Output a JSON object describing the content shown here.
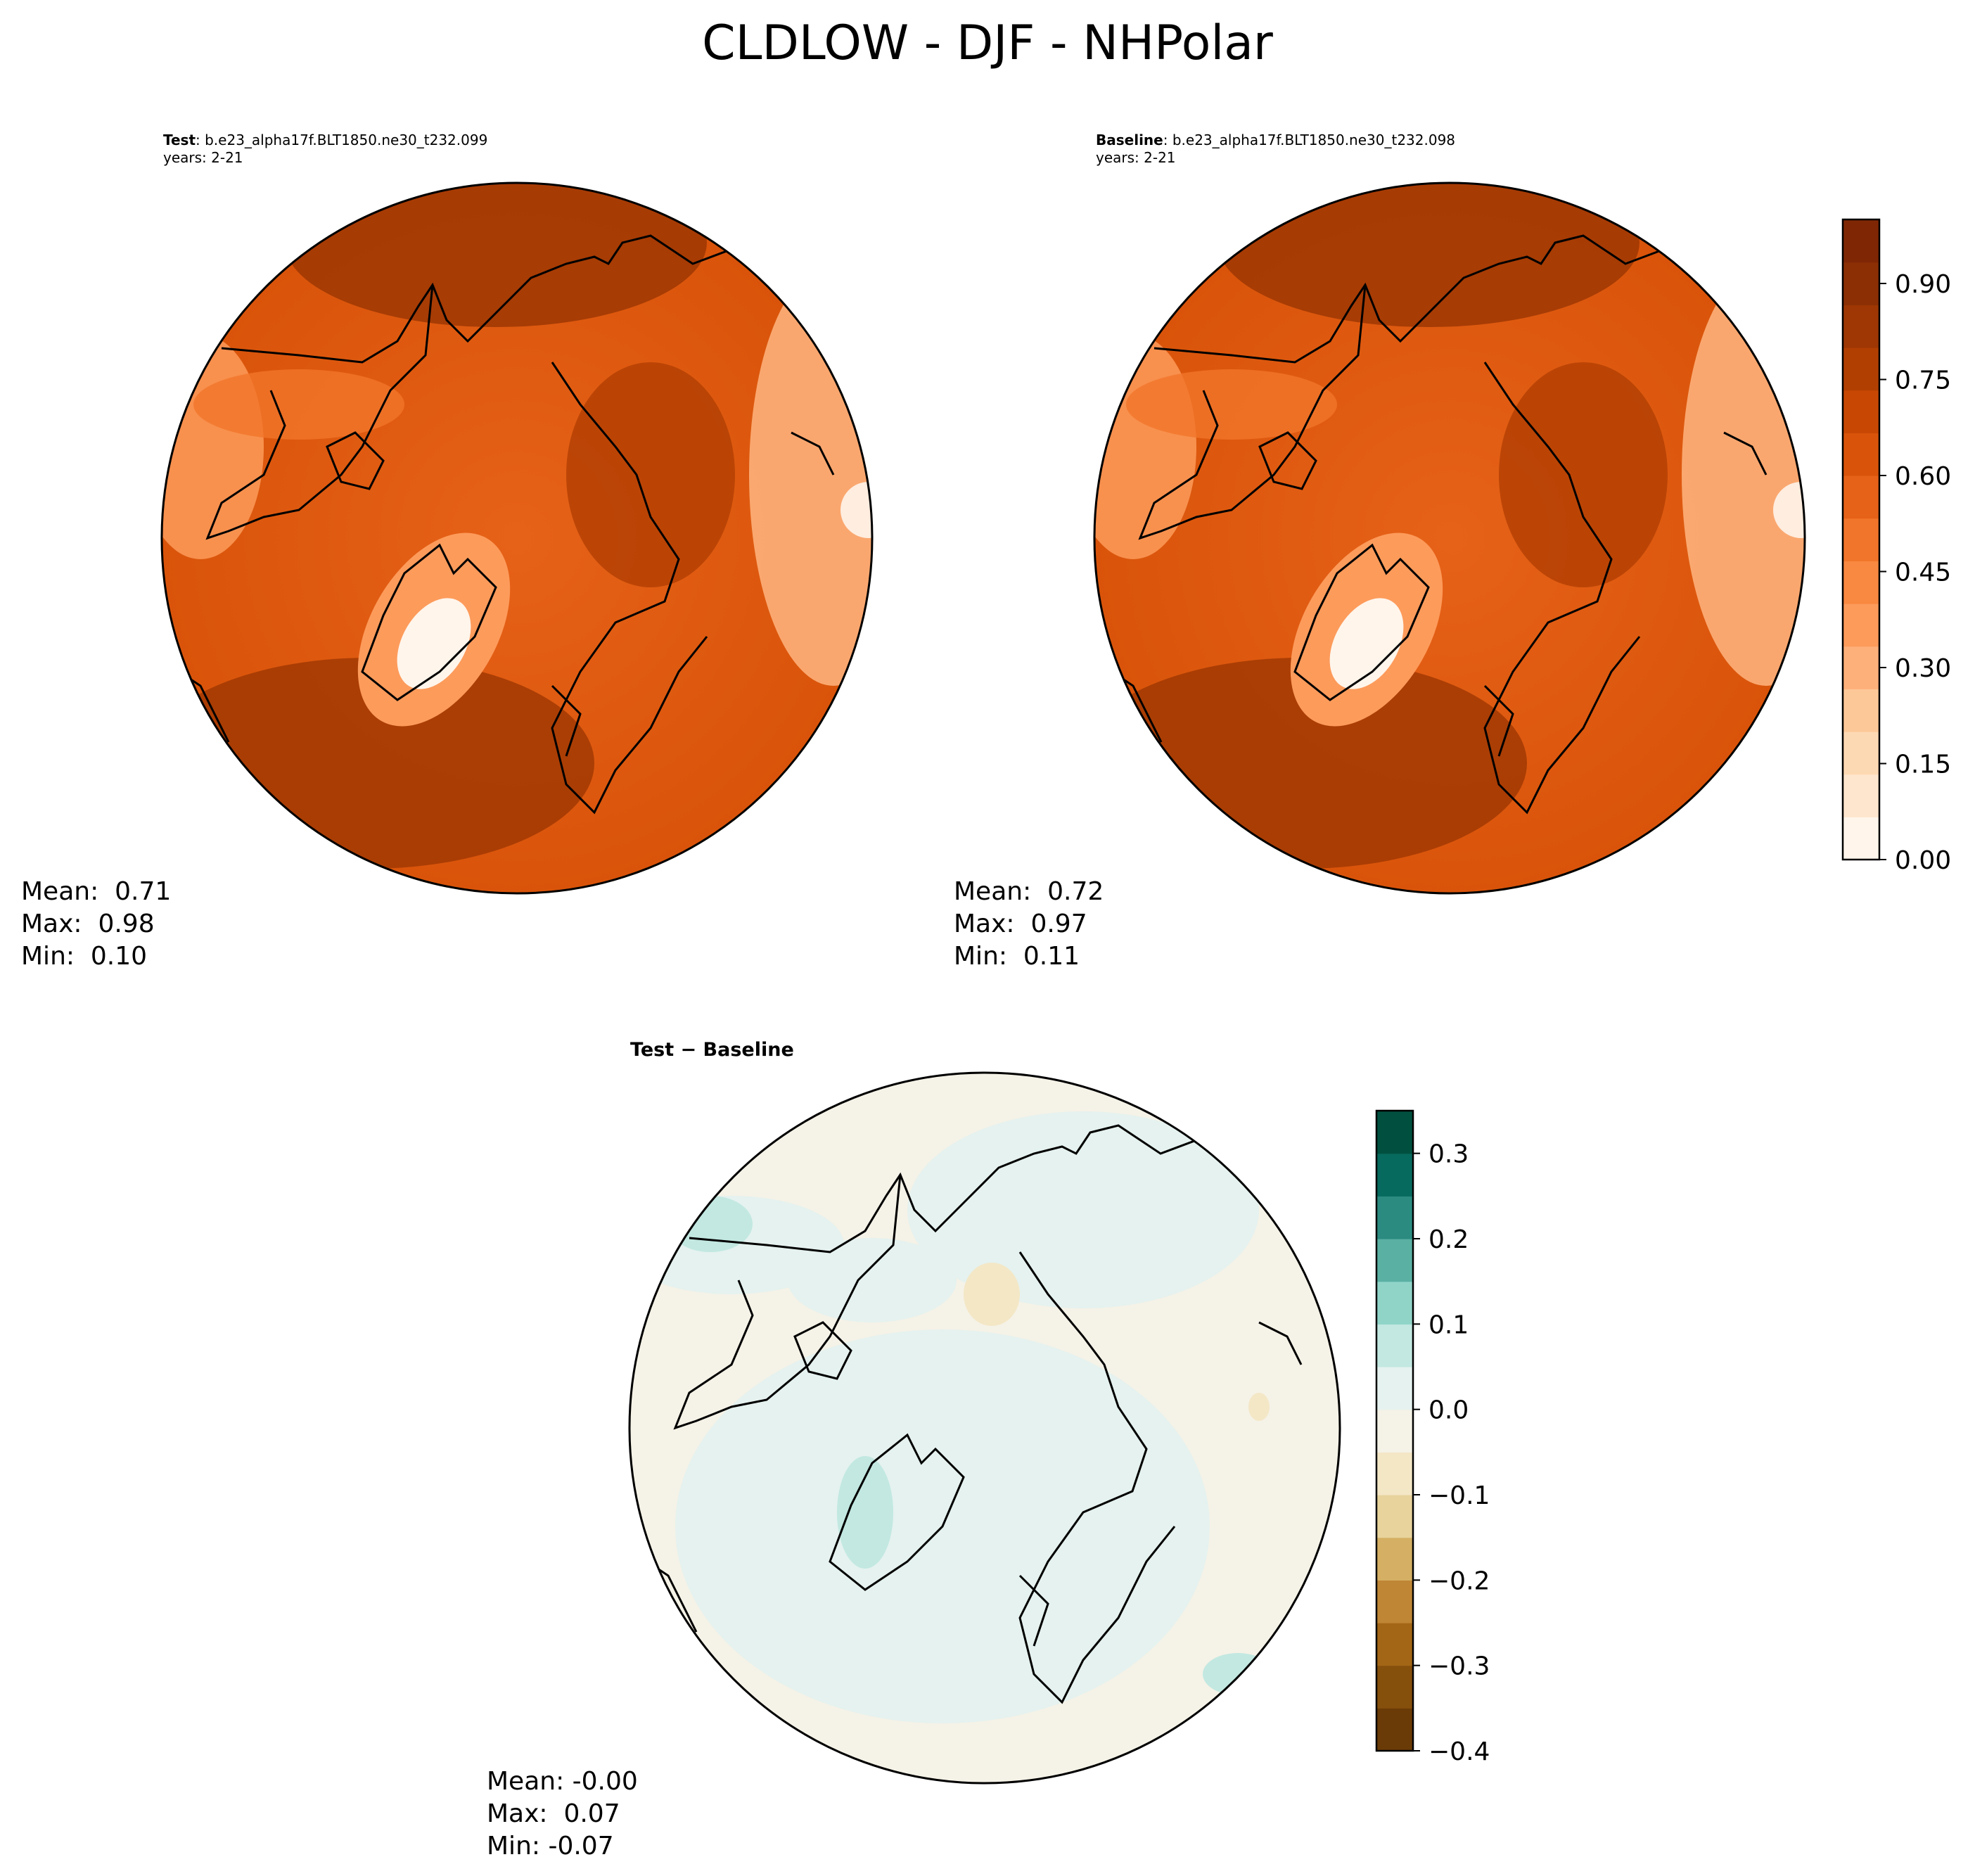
{
  "title": "CLDLOW - DJF - NHPolar",
  "panels": {
    "test": {
      "label_bold": "Test",
      "label_rest": ": b.e23_alpha17f.BLT1850.ne30_t232.099",
      "years": "years: 2-21",
      "mean": "Mean:  0.71",
      "max": "Max:  0.98",
      "min": "Min:  0.10"
    },
    "baseline": {
      "label_bold": "Baseline",
      "label_rest": ": b.e23_alpha17f.BLT1850.ne30_t232.098",
      "years": "years: 2-21",
      "mean": "Mean:  0.72",
      "max": "Max:  0.97",
      "min": "Min:  0.11"
    },
    "diff": {
      "label": "Test − Baseline",
      "mean": "Mean: -0.00",
      "max": "Max:  0.07",
      "min": "Min: -0.07"
    }
  },
  "colorbars": {
    "field": {
      "ticks": [
        "0.00",
        "0.15",
        "0.30",
        "0.45",
        "0.60",
        "0.75",
        "0.90"
      ],
      "colors": [
        "#fff5eb",
        "#fee6ce",
        "#fdd9b3",
        "#fdc898",
        "#fdb07a",
        "#fd9b5b",
        "#f98840",
        "#f1752a",
        "#e66218",
        "#d9540a",
        "#c84803",
        "#b23f02",
        "#9e3703",
        "#8c2f04",
        "#7f2704"
      ]
    },
    "diff": {
      "ticks": [
        "−0.4",
        "−0.3",
        "−0.2",
        "−0.1",
        "0.0",
        "0.1",
        "0.2",
        "0.3"
      ],
      "colors": [
        "#6a3b06",
        "#854f0c",
        "#a36616",
        "#bf8636",
        "#d5b064",
        "#e8d39c",
        "#f4e7c6",
        "#f5f2e7",
        "#e5f2ef",
        "#c2e8e1",
        "#90d4c8",
        "#5ab0a3",
        "#2b8b80",
        "#076a5e",
        "#01503f"
      ]
    }
  },
  "map_colors": {
    "test": {
      "base": "#d9540a",
      "dark": "#9e3703",
      "mid": "#e66218",
      "light": "#fdb07a",
      "pale": "#fff5eb"
    },
    "baseline": {
      "base": "#d9540a",
      "dark": "#9e3703",
      "mid": "#e66218",
      "light": "#fdb07a",
      "pale": "#fff5eb"
    },
    "diff": {
      "base": "#f5f2e7",
      "teal": "#e5f2ef",
      "teal2": "#c2e8e1",
      "tan": "#f4e7c6"
    }
  }
}
